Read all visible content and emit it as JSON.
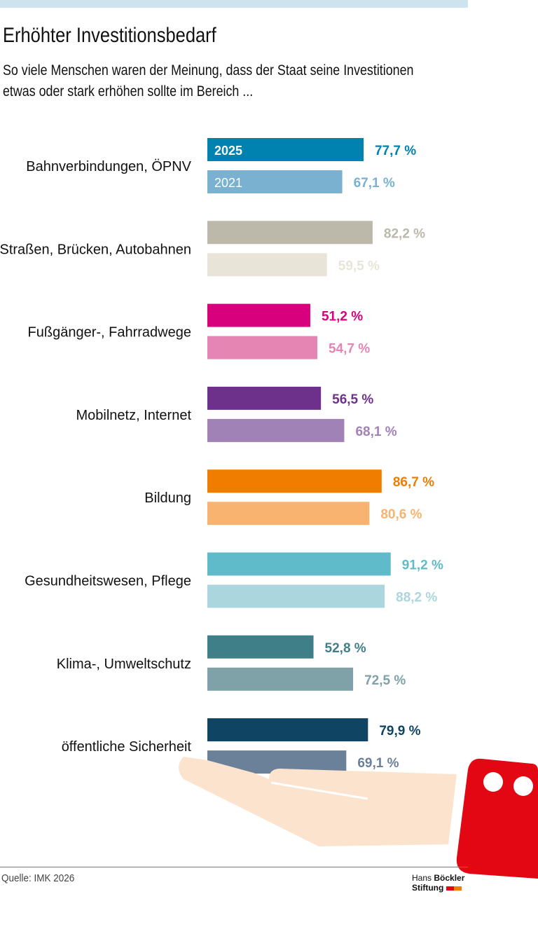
{
  "header": {
    "title": "Erhöhter Investitionsbedarf",
    "subtitle_line1": "So viele Menschen waren der Meinung, dass der Staat seine Investitionen",
    "subtitle_line2": "etwas oder stark erhöhen sollte im Bereich ..."
  },
  "chart_data": {
    "type": "bar",
    "orientation": "horizontal",
    "title": "Erhöhter Investitionsbedarf",
    "categories": [
      "Bahnverbindungen, ÖPNV",
      "Straßen, Brücken, Autobahnen",
      "Fußgänger-, Fahrradwege",
      "Mobilnetz, Internet",
      "Bildung",
      "Gesundheitswesen, Pflege",
      "Klima-, Umweltschutz",
      "öffentliche Sicherheit"
    ],
    "series": [
      {
        "name": "2025",
        "values": [
          77.7,
          82.2,
          51.2,
          56.5,
          86.7,
          91.2,
          52.8,
          79.9
        ],
        "labels": [
          "77,7 %",
          "82,2 %",
          "51,2 %",
          "56,5 %",
          "86,7 %",
          "91,2 %",
          "52,8 %",
          "79,9 %"
        ],
        "colors": [
          "#0082b0",
          "#bcb9ab",
          "#d9007e",
          "#6e318b",
          "#f07d00",
          "#5fbaca",
          "#3f7f87",
          "#0f4462"
        ]
      },
      {
        "name": "2021",
        "values": [
          67.1,
          59.5,
          54.7,
          68.1,
          80.6,
          88.2,
          72.5,
          69.1
        ],
        "labels": [
          "67,1 %",
          "59,5 %",
          "54,7 %",
          "68,1 %",
          "80,6 %",
          "88,2 %",
          "72,5 %",
          "69,1 %"
        ],
        "colors": [
          "#7ab0d0",
          "#e8e5d8",
          "#e585b3",
          "#a182b6",
          "#f8b370",
          "#abd6dd",
          "#7fa2a8",
          "#6b8099"
        ]
      }
    ],
    "xlim": [
      0,
      100
    ],
    "grid": false
  },
  "footer": {
    "source": "Quelle: IMK 2026",
    "logo_line1_light": "Hans",
    "logo_line1_bold": "Böckler",
    "logo_line2": "Stiftung"
  }
}
